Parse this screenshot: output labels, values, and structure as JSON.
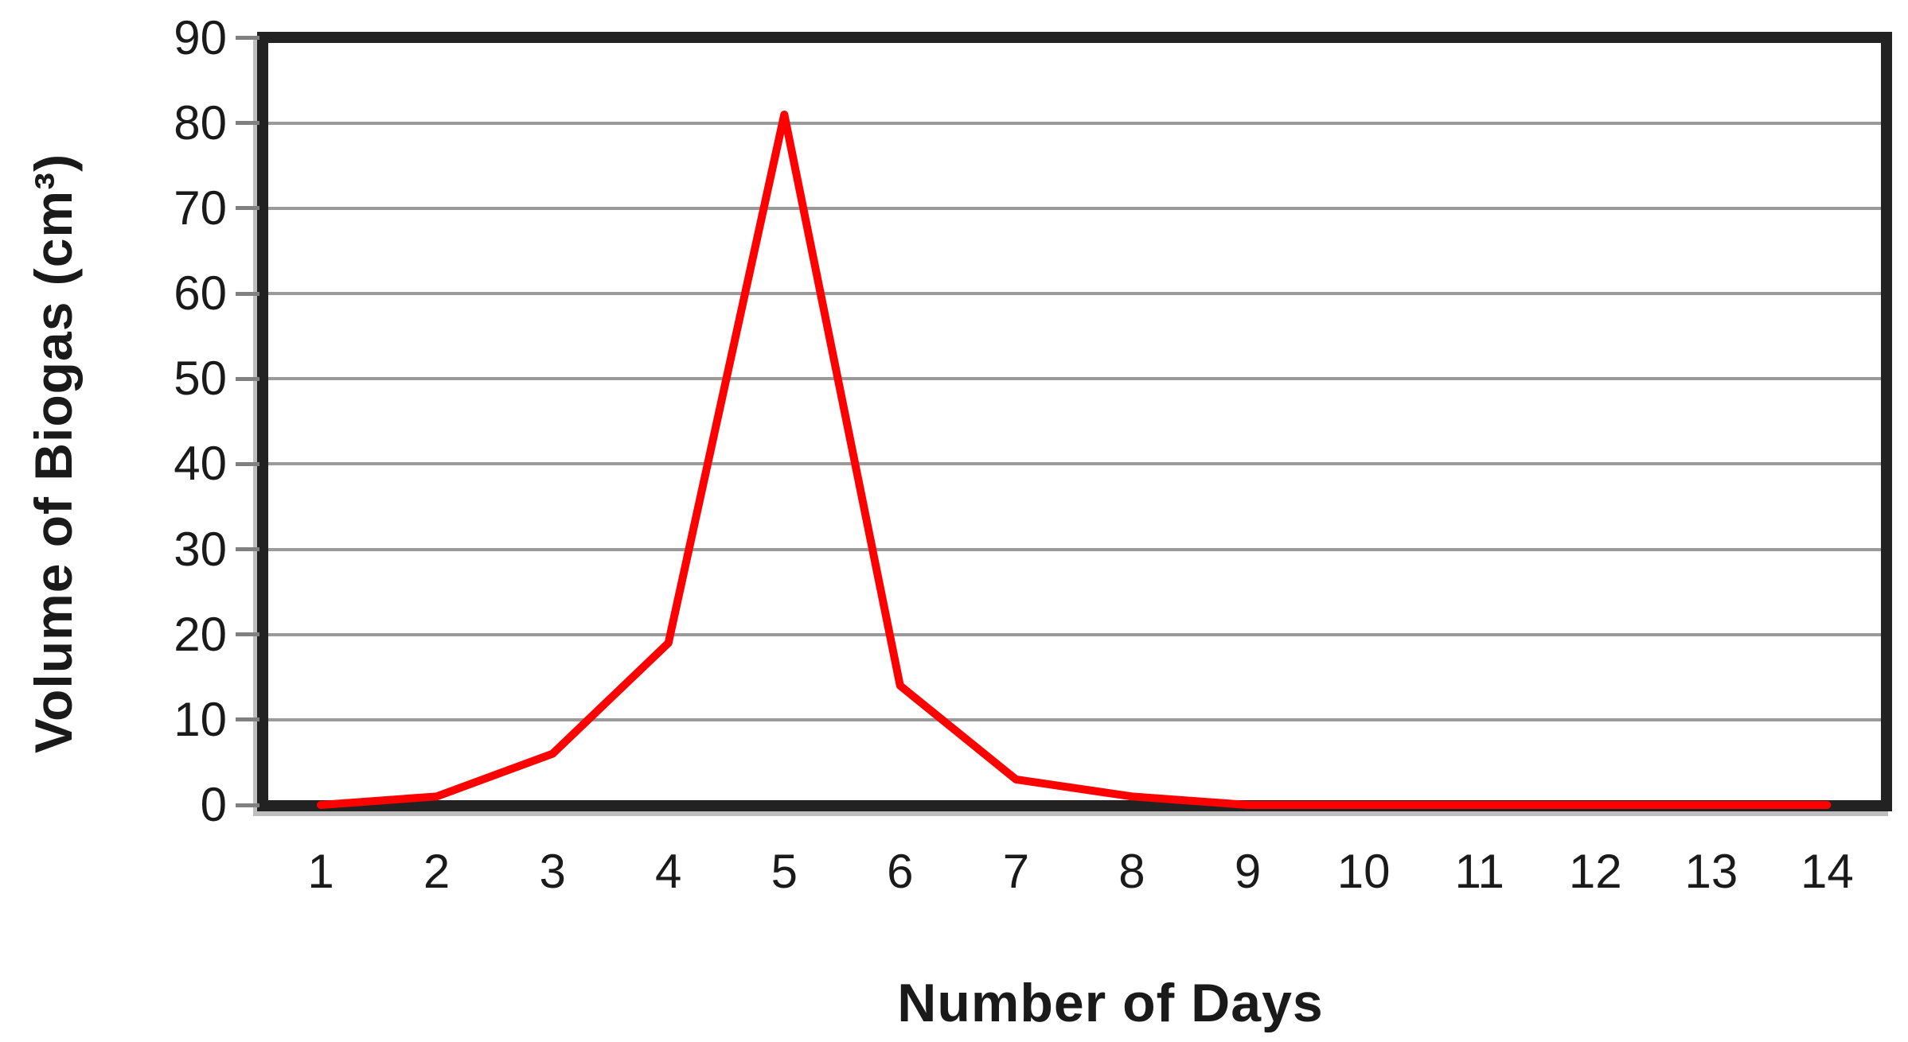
{
  "chart_data": {
    "type": "line",
    "title": "",
    "xlabel": "Number of Days",
    "ylabel": "Volume of Biogas (cm³)",
    "categories": [
      1,
      2,
      3,
      4,
      5,
      6,
      7,
      8,
      9,
      10,
      11,
      12,
      13,
      14
    ],
    "series": [
      {
        "name": "Volume of Biogas",
        "color": "#ff0000",
        "values": [
          0,
          1,
          6,
          19,
          81,
          14,
          3,
          1,
          0,
          0,
          0,
          0,
          0,
          0
        ]
      }
    ],
    "ylim": [
      0,
      90
    ],
    "yticks": [
      0,
      10,
      20,
      30,
      40,
      50,
      60,
      70,
      80,
      90
    ],
    "grid": "horizontal-only",
    "legend": "none",
    "styles": {
      "background": "#ffffff",
      "gridline_color": "#9a9a9a",
      "axis_frame_color": "#222222",
      "axis_shadow_color": "#888888",
      "tick_color": "#808080",
      "text_color": "#1a1a1a",
      "line_width": 10
    }
  }
}
